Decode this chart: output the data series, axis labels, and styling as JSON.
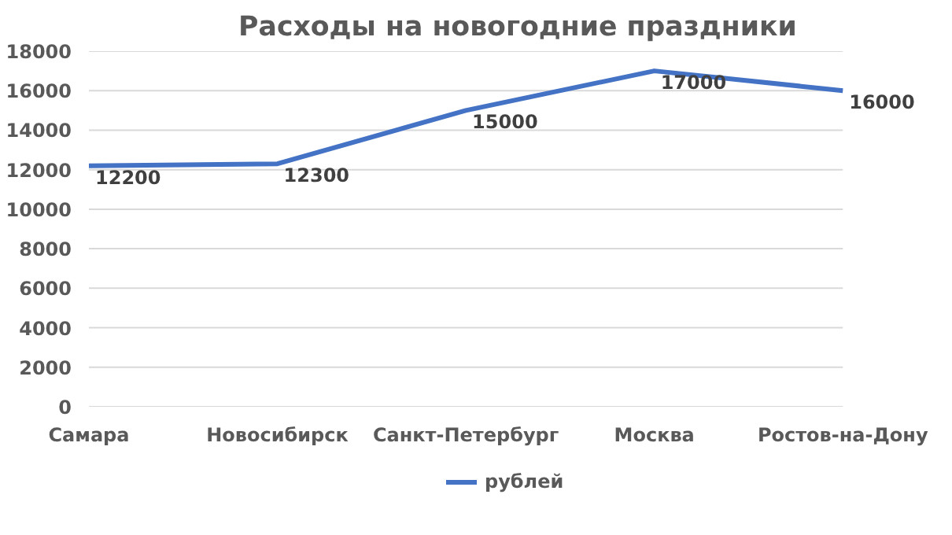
{
  "chart_data": {
    "type": "line",
    "title": "Расходы на новогодние праздники",
    "categories": [
      "Самара",
      "Новосибирск",
      "Санкт-Петербург",
      "Москва",
      "Ростов-на-Дону"
    ],
    "series": [
      {
        "name": "рублей",
        "color": "#4472c4",
        "values": [
          12200,
          12300,
          15000,
          17000,
          16000
        ]
      }
    ],
    "ylim": [
      0,
      18000
    ],
    "yticks": [
      0,
      2000,
      4000,
      6000,
      8000,
      10000,
      12000,
      14000,
      16000,
      18000
    ],
    "grid": "y",
    "legend": "bottom",
    "data_labels": true
  }
}
